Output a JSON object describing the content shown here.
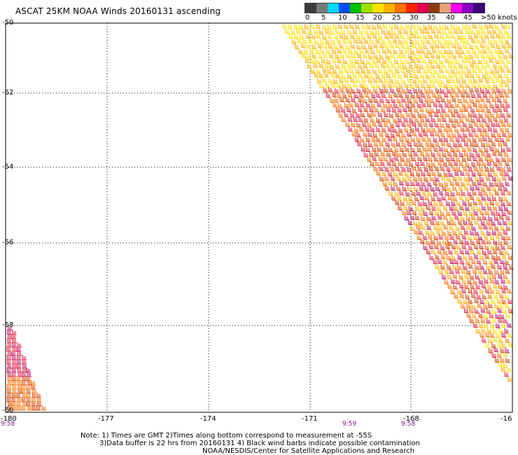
{
  "title": "ASCAT 25KM NOAA Winds 20160131 ascending",
  "legend": {
    "ticks": [
      "0",
      "5",
      "10",
      "15",
      "20",
      "25",
      "30",
      "35",
      "40",
      "45",
      ">50 knots"
    ],
    "colors": [
      "#3a3a3a",
      "#7a7a7a",
      "#00d8ff",
      "#0050ff",
      "#00c000",
      "#a0e000",
      "#ffe000",
      "#ffb000",
      "#ff7000",
      "#ff2000",
      "#e00050",
      "#8b3a10",
      "#e8a078",
      "#ff00ff",
      "#8a00c0",
      "#3a0080"
    ]
  },
  "axes": {
    "lat_labels": [
      "-50",
      "-52",
      "-54",
      "-56",
      "-58",
      "-60"
    ],
    "lon_labels": [
      "-180",
      "-177",
      "-174",
      "-171",
      "-168",
      "-16"
    ]
  },
  "times": {
    "left": "9:58",
    "mid1": "9:59",
    "mid2": "9:58"
  },
  "notes": {
    "line1": "Note: 1) Times are GMT 2)Times along bottom correspond to measurement at -55S",
    "line2": "3)Data buffer is 22 hrs from 20160131 4) Black wind barbs indicate possible contamination",
    "line3": "NOAA/NESDIS/Center for Satellite Applications and Research"
  },
  "swath_colors": [
    "#ffe000",
    "#ffb000",
    "#ff7000",
    "#d84000",
    "#e02040",
    "#c01060"
  ]
}
